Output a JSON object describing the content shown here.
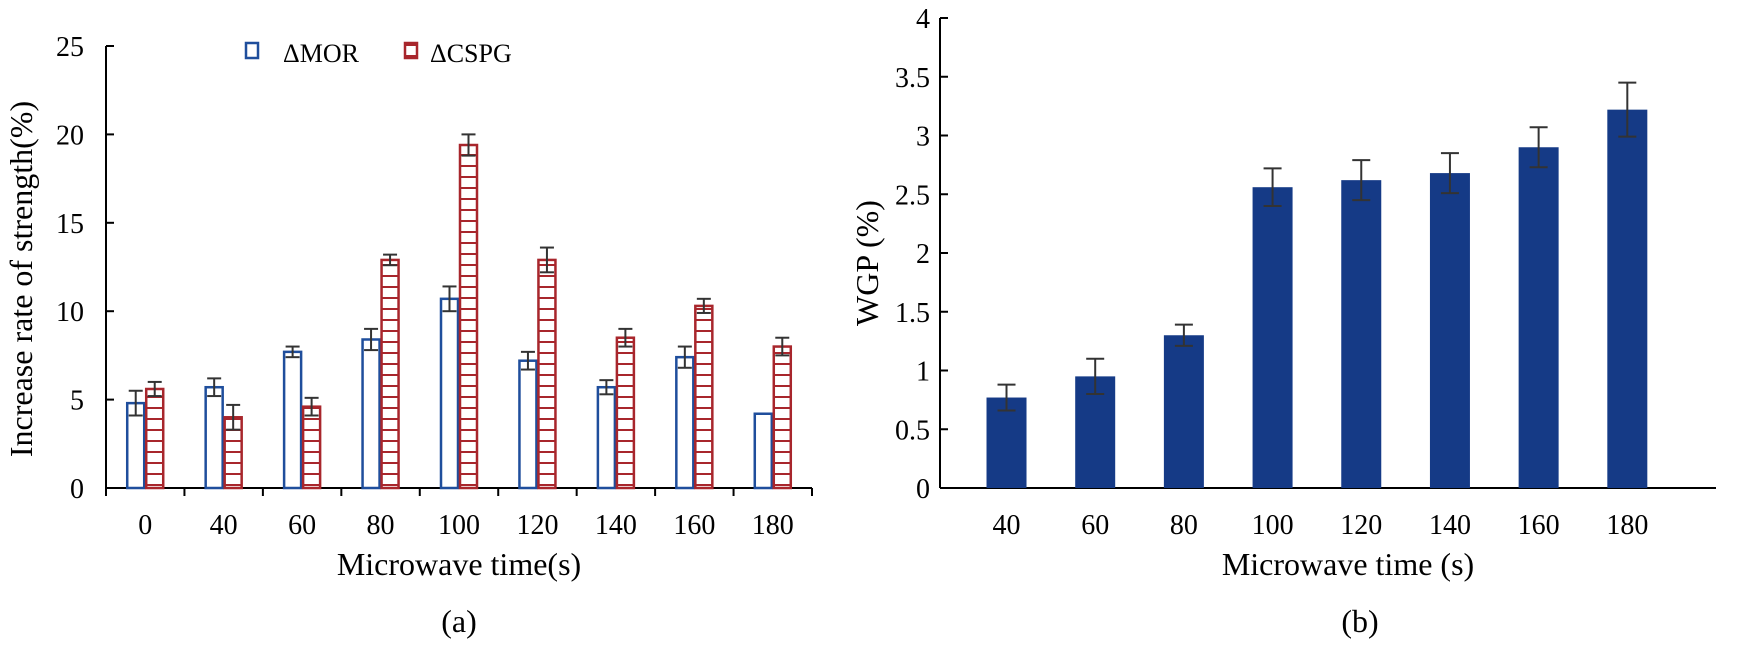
{
  "chart_data": [
    {
      "type": "bar",
      "panel_label": "(a)",
      "xlabel": "Microwave time(s)",
      "ylabel": "Increase rate of strength(%)",
      "ylim": [
        0,
        25
      ],
      "yticks": [
        "0",
        "5",
        "10",
        "15",
        "20",
        "25"
      ],
      "categories": [
        "0",
        "40",
        "60",
        "80",
        "100",
        "120",
        "140",
        "160",
        "180"
      ],
      "legend_position": "top-center",
      "series": [
        {
          "name": "ΔMOR",
          "color": "#1f4e9c",
          "pattern": "hollow",
          "values": [
            4.8,
            5.7,
            7.7,
            8.4,
            10.7,
            7.2,
            5.7,
            7.4,
            4.2
          ],
          "errors": [
            0.7,
            0.5,
            0.3,
            0.6,
            0.7,
            0.5,
            0.4,
            0.6,
            0.0
          ]
        },
        {
          "name": "ΔCSPG",
          "color": "#a8262c",
          "pattern": "horizontal-lines",
          "values": [
            5.6,
            4.0,
            4.6,
            12.9,
            19.4,
            12.9,
            8.5,
            10.3,
            8.0
          ],
          "errors": [
            0.4,
            0.7,
            0.5,
            0.3,
            0.6,
            0.7,
            0.5,
            0.4,
            0.5
          ]
        }
      ]
    },
    {
      "type": "bar",
      "panel_label": "(b)",
      "xlabel": "Microwave time (s)",
      "ylabel": "WGP (%)",
      "ylim": [
        0,
        4
      ],
      "yticks": [
        "0",
        "0.5",
        "1",
        "1.5",
        "2",
        "2.5",
        "3",
        "3.5",
        "4"
      ],
      "categories": [
        "40",
        "60",
        "80",
        "100",
        "120",
        "140",
        "160",
        "180"
      ],
      "series": [
        {
          "name": "WGP",
          "color": "#153a86",
          "values": [
            0.77,
            0.95,
            1.3,
            2.56,
            2.62,
            2.68,
            2.9,
            3.22
          ],
          "errors": [
            0.11,
            0.15,
            0.09,
            0.16,
            0.17,
            0.17,
            0.17,
            0.23
          ]
        }
      ]
    }
  ]
}
